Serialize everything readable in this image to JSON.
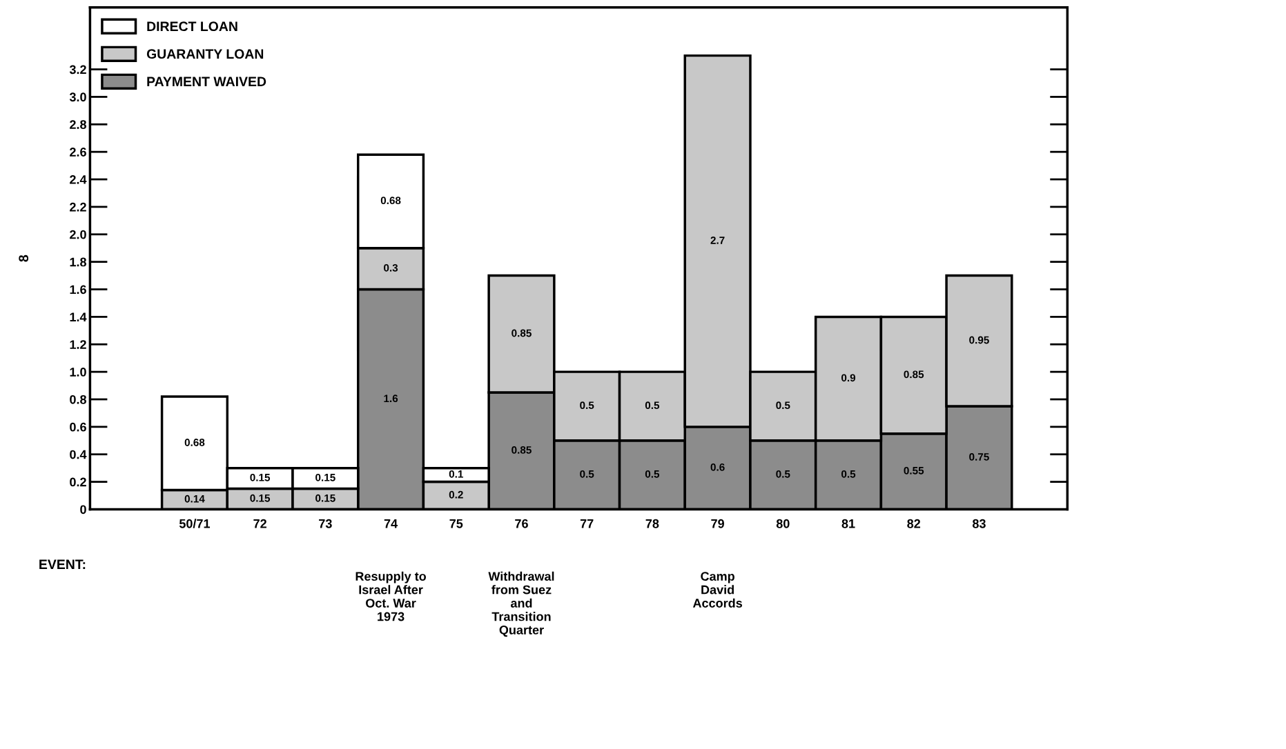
{
  "chart_data": {
    "type": "bar",
    "stacked": true,
    "categories": [
      "50/71",
      "72",
      "73",
      "74",
      "75",
      "76",
      "77",
      "78",
      "79",
      "80",
      "81",
      "82",
      "83"
    ],
    "series": [
      {
        "name": "PAYMENT WAIVED",
        "color": "#8c8c8c",
        "values": [
          null,
          null,
          null,
          1.6,
          null,
          0.85,
          0.5,
          0.5,
          0.6,
          0.5,
          0.5,
          0.55,
          0.75
        ]
      },
      {
        "name": "GUARANTY LOAN",
        "color": "#c8c8c8",
        "values": [
          0.14,
          0.15,
          0.15,
          0.3,
          0.2,
          0.85,
          0.5,
          0.5,
          2.7,
          0.5,
          0.9,
          0.85,
          0.95
        ]
      },
      {
        "name": "DIRECT LOAN",
        "color": "#ffffff",
        "values": [
          0.68,
          0.15,
          0.15,
          0.68,
          0.1,
          null,
          null,
          null,
          null,
          null,
          null,
          null,
          null
        ]
      }
    ],
    "ylabel": "8",
    "ylim": [
      0,
      3.65
    ],
    "yticks": [
      0,
      0.2,
      0.4,
      0.6,
      0.8,
      "1.0",
      1.2,
      1.4,
      1.6,
      1.8,
      "2.0",
      2.2,
      2.4,
      2.6,
      2.8,
      "3.0",
      3.2
    ],
    "data_labels": true,
    "legend": "top left",
    "grid": false,
    "annotations": [
      "EVENT:",
      "Resupply to\nIsrael After\nOct. War\n1973",
      "Withdrawal\nfrom Suez\nand\nTransition\nQuarter",
      "Camp\nDavid\nAccords"
    ]
  }
}
